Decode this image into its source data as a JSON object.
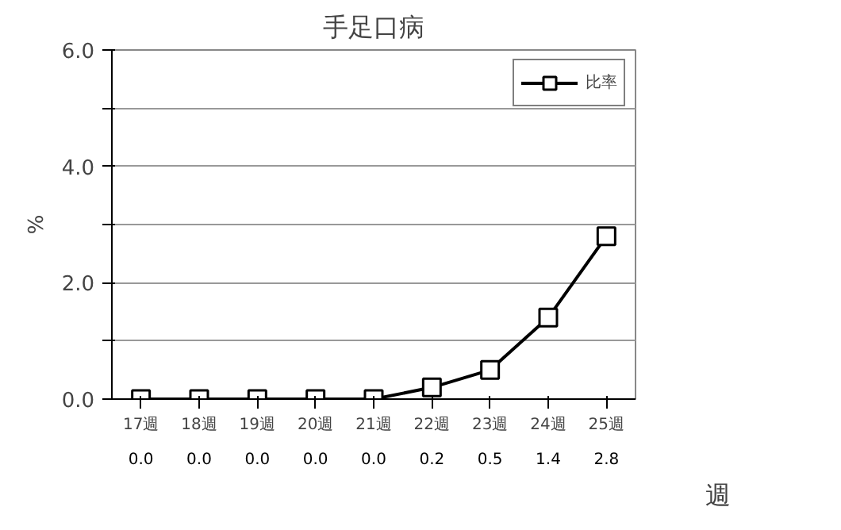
{
  "chart_data": {
    "type": "line",
    "title": "手足口病",
    "xlabel": "週",
    "ylabel": "%",
    "categories": [
      "17週",
      "18週",
      "19週",
      "20週",
      "21週",
      "22週",
      "23週",
      "24週",
      "25週"
    ],
    "series": [
      {
        "name": "比率",
        "color": "#000000",
        "values": [
          0.0,
          0.0,
          0.0,
          0.0,
          0.0,
          0.2,
          0.5,
          1.4,
          2.8
        ],
        "value_labels": [
          "0.0",
          "0.0",
          "0.0",
          "0.0",
          "0.0",
          "0.2",
          "0.5",
          "1.4",
          "2.8"
        ]
      }
    ],
    "ylim": [
      0,
      6
    ],
    "yticks": [
      {
        "value": 0,
        "label": "0.0"
      },
      {
        "value": 1,
        "label": null
      },
      {
        "value": 2,
        "label": "2.0"
      },
      {
        "value": 3,
        "label": null
      },
      {
        "value": 4,
        "label": "4.0"
      },
      {
        "value": 5,
        "label": null
      },
      {
        "value": 6,
        "label": "6.0"
      }
    ],
    "grid": "y",
    "legend": "top right",
    "marker": "square",
    "line_style": "solid"
  }
}
